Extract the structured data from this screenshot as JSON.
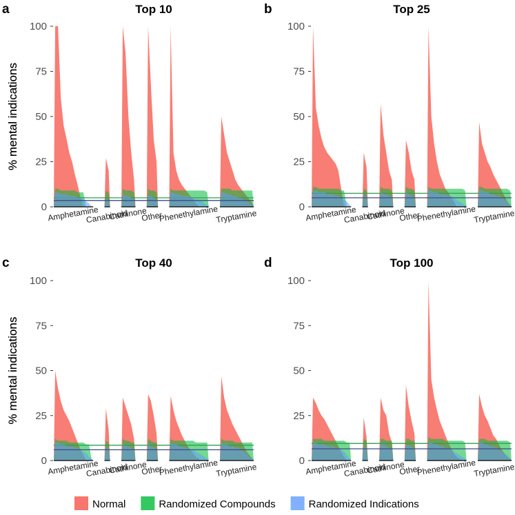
{
  "legend": [
    {
      "name": "Normal",
      "color": "#f8766d"
    },
    {
      "name": "Randomized Compounds",
      "color": "#00ba38"
    },
    {
      "name": "Randomized Indications",
      "color": "#619cff"
    }
  ],
  "chart_data": [
    {
      "type": "area",
      "panel": "a",
      "title": "Top 10",
      "ylabel": "% mental indications",
      "ylim": [
        0,
        100
      ],
      "yticks": [
        0,
        25,
        50,
        75,
        100
      ],
      "categories": [
        "Amphetamine",
        "Canabinoid",
        "Cathinone",
        "Other",
        "Phenethylamine",
        "Tryptamine"
      ],
      "series": [
        {
          "values": [
            [
              100,
              100,
              60,
              45,
              38,
              30,
              25,
              18,
              12,
              5,
              0,
              0,
              0,
              0
            ],
            [
              27,
              20
            ],
            [
              100,
              85,
              50,
              30,
              15
            ],
            [
              100,
              67,
              37,
              25
            ],
            [
              100,
              30,
              20,
              15,
              12,
              10,
              8,
              6,
              4,
              2,
              0,
              0,
              0,
              0
            ],
            [
              50,
              40,
              30,
              25,
              20,
              15,
              12,
              10,
              8,
              6,
              4,
              2
            ]
          ]
        },
        {
          "mean": 5,
          "values": [
            [
              10,
              10,
              9,
              9,
              9,
              9,
              9,
              9,
              8,
              8,
              8,
              0,
              0,
              0
            ],
            [
              9,
              8
            ],
            [
              10,
              9,
              9,
              9,
              8
            ],
            [
              10,
              9,
              9,
              8
            ],
            [
              10,
              9,
              9,
              9,
              9,
              9,
              9,
              9,
              9,
              9,
              9,
              9,
              9,
              8
            ],
            [
              10,
              10,
              10,
              10,
              9,
              9,
              9,
              9,
              9,
              9,
              9,
              9
            ]
          ]
        },
        {
          "mean": 3.5,
          "values": [
            [
              8,
              8,
              7,
              7,
              7,
              6,
              6,
              6,
              5,
              5,
              4,
              3,
              2,
              0
            ],
            [
              5,
              3
            ],
            [
              7,
              6,
              6,
              5,
              4
            ],
            [
              6,
              6,
              5,
              4
            ],
            [
              8,
              8,
              7,
              7,
              6,
              6,
              6,
              5,
              5,
              4,
              4,
              3,
              2,
              1
            ],
            [
              8,
              8,
              7,
              7,
              6,
              6,
              5,
              5,
              4,
              3,
              2,
              1
            ]
          ]
        }
      ]
    },
    {
      "type": "area",
      "panel": "b",
      "title": "Top 25",
      "ylabel": "% mental indications",
      "ylim": [
        0,
        100
      ],
      "yticks": [
        0,
        25,
        50,
        75,
        100
      ],
      "categories": [
        "Amphetamine",
        "Canabinoid",
        "Cathinone",
        "Other",
        "Phenethylamine",
        "Tryptamine"
      ],
      "series": [
        {
          "values": [
            [
              100,
              55,
              45,
              38,
              33,
              30,
              28,
              26,
              24,
              20,
              10,
              0,
              0,
              0
            ],
            [
              30,
              22
            ],
            [
              57,
              40,
              30,
              20,
              15
            ],
            [
              37,
              30,
              20,
              15
            ],
            [
              100,
              50,
              35,
              25,
              18,
              14,
              10,
              8,
              5,
              3,
              0,
              0,
              0,
              0
            ],
            [
              47,
              35,
              30,
              25,
              22,
              18,
              15,
              12,
              9,
              6,
              3,
              1
            ]
          ]
        },
        {
          "mean": 7.5,
          "values": [
            [
              11,
              11,
              10,
              10,
              10,
              10,
              10,
              10,
              10,
              10,
              9,
              9,
              0,
              0
            ],
            [
              10,
              9
            ],
            [
              11,
              10,
              10,
              10,
              9
            ],
            [
              11,
              10,
              10,
              9
            ],
            [
              11,
              10,
              10,
              10,
              10,
              10,
              10,
              10,
              10,
              10,
              10,
              10,
              10,
              9
            ],
            [
              11,
              11,
              10,
              10,
              10,
              10,
              10,
              10,
              10,
              10,
              10,
              9
            ]
          ]
        },
        {
          "mean": 5,
          "values": [
            [
              9,
              9,
              8,
              8,
              8,
              7,
              7,
              7,
              6,
              6,
              5,
              4,
              3,
              1
            ],
            [
              7,
              5
            ],
            [
              8,
              7,
              7,
              6,
              5
            ],
            [
              8,
              7,
              6,
              5
            ],
            [
              9,
              9,
              8,
              8,
              7,
              7,
              7,
              6,
              6,
              5,
              4,
              3,
              2,
              1
            ],
            [
              9,
              9,
              8,
              8,
              7,
              7,
              6,
              6,
              5,
              4,
              3,
              1
            ]
          ]
        }
      ]
    },
    {
      "type": "area",
      "panel": "c",
      "title": "Top 40",
      "ylabel": "% mental indications",
      "ylim": [
        0,
        100
      ],
      "yticks": [
        0,
        25,
        50,
        75,
        100
      ],
      "categories": [
        "Amphetamine",
        "Canabinoid",
        "Cathinone",
        "Other",
        "Phenethylamine",
        "Tryptamine"
      ],
      "series": [
        {
          "values": [
            [
              50,
              40,
              33,
              28,
              25,
              22,
              18,
              14,
              10,
              6,
              3,
              0,
              0,
              0
            ],
            [
              29,
              17
            ],
            [
              35,
              30,
              25,
              20,
              12
            ],
            [
              37,
              33,
              25,
              15
            ],
            [
              36,
              28,
              22,
              18,
              14,
              11,
              8,
              6,
              4,
              2,
              1,
              0,
              0,
              0
            ],
            [
              47,
              35,
              28,
              24,
              20,
              17,
              14,
              11,
              8,
              5,
              3,
              1
            ]
          ]
        },
        {
          "mean": 8.5,
          "values": [
            [
              12,
              11,
              11,
              11,
              11,
              10,
              10,
              10,
              10,
              10,
              10,
              9,
              9,
              0
            ],
            [
              11,
              10
            ],
            [
              12,
              11,
              11,
              10,
              10
            ],
            [
              12,
              11,
              10,
              10
            ],
            [
              12,
              11,
              11,
              11,
              11,
              11,
              11,
              11,
              11,
              10,
              10,
              10,
              10,
              10
            ],
            [
              12,
              11,
              11,
              11,
              11,
              10,
              10,
              10,
              10,
              10,
              10,
              10
            ]
          ]
        },
        {
          "mean": 6,
          "values": [
            [
              10,
              10,
              9,
              9,
              8,
              8,
              8,
              7,
              7,
              6,
              5,
              4,
              2,
              1
            ],
            [
              8,
              6
            ],
            [
              9,
              8,
              8,
              7,
              6
            ],
            [
              9,
              8,
              7,
              6
            ],
            [
              10,
              9,
              9,
              8,
              8,
              7,
              7,
              6,
              6,
              5,
              4,
              3,
              2,
              1
            ],
            [
              10,
              9,
              9,
              8,
              8,
              7,
              7,
              6,
              5,
              4,
              2,
              1
            ]
          ]
        }
      ]
    },
    {
      "type": "area",
      "panel": "d",
      "title": "Top 100",
      "ylabel": "% mental indications",
      "ylim": [
        0,
        100
      ],
      "yticks": [
        0,
        25,
        50,
        75,
        100
      ],
      "categories": [
        "Amphetamine",
        "Canabinoid",
        "Cathinone",
        "Other",
        "Phenethylamine",
        "Tryptamine"
      ],
      "series": [
        {
          "values": [
            [
              35,
              32,
              28,
              25,
              23,
              20,
              17,
              14,
              11,
              8,
              5,
              2,
              0,
              0
            ],
            [
              24,
              13
            ],
            [
              35,
              28,
              25,
              15,
              10
            ],
            [
              42,
              30,
              22,
              15
            ],
            [
              100,
              45,
              35,
              28,
              22,
              18,
              14,
              10,
              7,
              4,
              2,
              1,
              0,
              0
            ],
            [
              37,
              30,
              25,
              22,
              18,
              14,
              12,
              9,
              6,
              4,
              2,
              1
            ]
          ]
        },
        {
          "mean": 9.5,
          "values": [
            [
              12,
              12,
              12,
              12,
              11,
              11,
              11,
              11,
              11,
              11,
              11,
              11,
              10,
              10
            ],
            [
              12,
              11
            ],
            [
              12,
              12,
              11,
              11,
              11
            ],
            [
              12,
              12,
              11,
              11
            ],
            [
              13,
              12,
              12,
              12,
              12,
              12,
              11,
              11,
              11,
              11,
              11,
              11,
              11,
              10
            ],
            [
              12,
              12,
              12,
              11,
              11,
              11,
              11,
              11,
              11,
              11,
              11,
              10
            ]
          ]
        },
        {
          "mean": 6.5,
          "values": [
            [
              10,
              10,
              9,
              9,
              9,
              8,
              8,
              8,
              7,
              7,
              6,
              5,
              3,
              1
            ],
            [
              9,
              6
            ],
            [
              9,
              9,
              8,
              7,
              6
            ],
            [
              9,
              8,
              8,
              6
            ],
            [
              10,
              10,
              9,
              9,
              8,
              8,
              7,
              7,
              6,
              5,
              4,
              3,
              2,
              1
            ],
            [
              10,
              10,
              9,
              9,
              8,
              8,
              7,
              6,
              5,
              4,
              3,
              1
            ]
          ]
        }
      ]
    }
  ]
}
